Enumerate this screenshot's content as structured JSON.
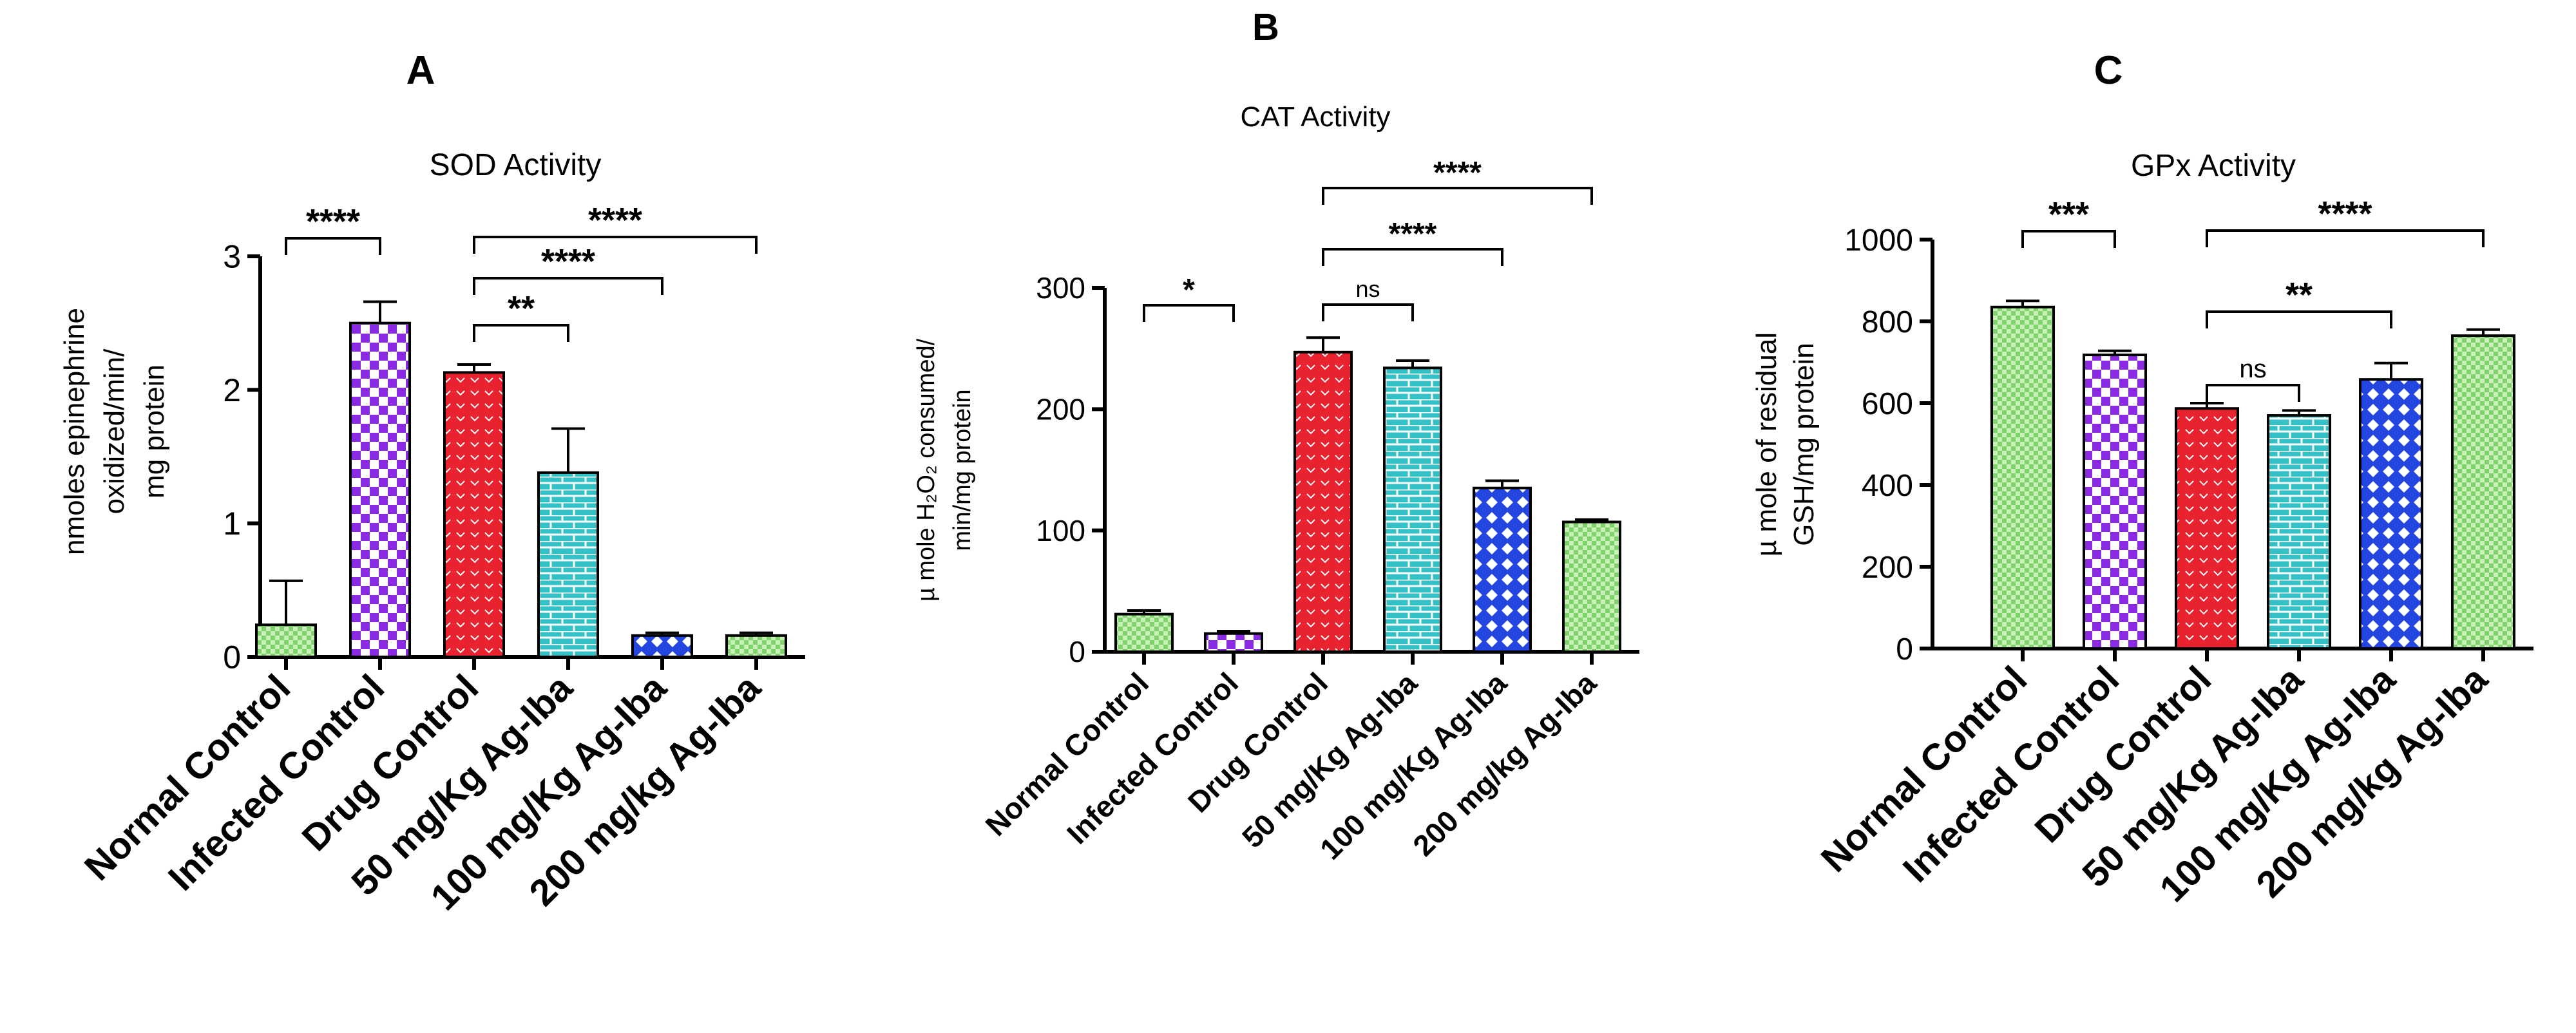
{
  "panels": [
    {
      "letter": "A",
      "chart_data": {
        "type": "bar",
        "title": "SOD Activity",
        "ylabel_lines": [
          "nmoles epinephrine",
          "oxidized/min/",
          "mg protein"
        ],
        "ylim": [
          0,
          3
        ],
        "yticks": [
          0,
          1,
          2,
          3
        ],
        "categories": [
          "Normal Control",
          "Infected Control",
          "Drug Control",
          "50 mg/Kg Ag-Iba",
          "100 mg/Kg Ag-Iba",
          "200 mg/kg Ag-Iba"
        ],
        "values": [
          0.24,
          2.5,
          2.13,
          1.38,
          0.16,
          0.16
        ],
        "errors": [
          0.33,
          0.16,
          0.06,
          0.33,
          0.02,
          0.02
        ],
        "significance": [
          {
            "from": 0,
            "to": 1,
            "label": "****"
          },
          {
            "from": 2,
            "to": 3,
            "label": "**"
          },
          {
            "from": 2,
            "to": 4,
            "label": "****"
          },
          {
            "from": 2,
            "to": 5,
            "label": "****"
          }
        ]
      }
    },
    {
      "letter": "B",
      "chart_data": {
        "type": "bar",
        "title": "CAT Activity",
        "ylabel_lines": [
          "µ mole H₂O₂ consumed/",
          "min/mg protein"
        ],
        "ylim": [
          0,
          300
        ],
        "yticks": [
          0,
          100,
          200,
          300
        ],
        "categories": [
          "Normal Control",
          "Infected Control",
          "Drug Control",
          "50 mg/Kg Ag-Iba",
          "100 mg/Kg Ag-Iba",
          "200 mg/kg Ag-Iba"
        ],
        "values": [
          31,
          15,
          247,
          234,
          135,
          107
        ],
        "errors": [
          3,
          2,
          12,
          6,
          6,
          2
        ],
        "significance": [
          {
            "from": 0,
            "to": 1,
            "label": "*"
          },
          {
            "from": 2,
            "to": 3,
            "label": "ns"
          },
          {
            "from": 2,
            "to": 4,
            "label": "****"
          },
          {
            "from": 2,
            "to": 5,
            "label": "****"
          }
        ]
      }
    },
    {
      "letter": "C",
      "chart_data": {
        "type": "bar",
        "title": "GPx Activity",
        "ylabel_lines": [
          "µ mole of residual",
          "GSH/mg protein"
        ],
        "ylim": [
          0,
          1000
        ],
        "yticks": [
          0,
          200,
          400,
          600,
          800,
          1000
        ],
        "categories": [
          "Normal Control",
          "Infected Control",
          "Drug Control",
          "50 mg/Kg Ag-Iba",
          "100 mg/Kg Ag-Iba",
          "200 mg/kg Ag-Iba"
        ],
        "values": [
          835,
          718,
          587,
          570,
          658,
          765
        ],
        "errors": [
          15,
          10,
          13,
          12,
          40,
          15
        ],
        "significance": [
          {
            "from": 0,
            "to": 1,
            "label": "***"
          },
          {
            "from": 2,
            "to": 3,
            "label": "ns"
          },
          {
            "from": 2,
            "to": 4,
            "label": "**"
          },
          {
            "from": 2,
            "to": 5,
            "label": "****"
          }
        ]
      }
    }
  ],
  "bar_styles": [
    {
      "fill": "#7fd36b",
      "pattern": "checker"
    },
    {
      "fill": "#8a2be2",
      "pattern": "checker-large"
    },
    {
      "fill": "#e8222e",
      "pattern": "hearts"
    },
    {
      "fill": "#33c1c6",
      "pattern": "bricks"
    },
    {
      "fill": "#2345e0",
      "pattern": "diamonds"
    },
    {
      "fill": "#7fd36b",
      "pattern": "checker"
    }
  ]
}
